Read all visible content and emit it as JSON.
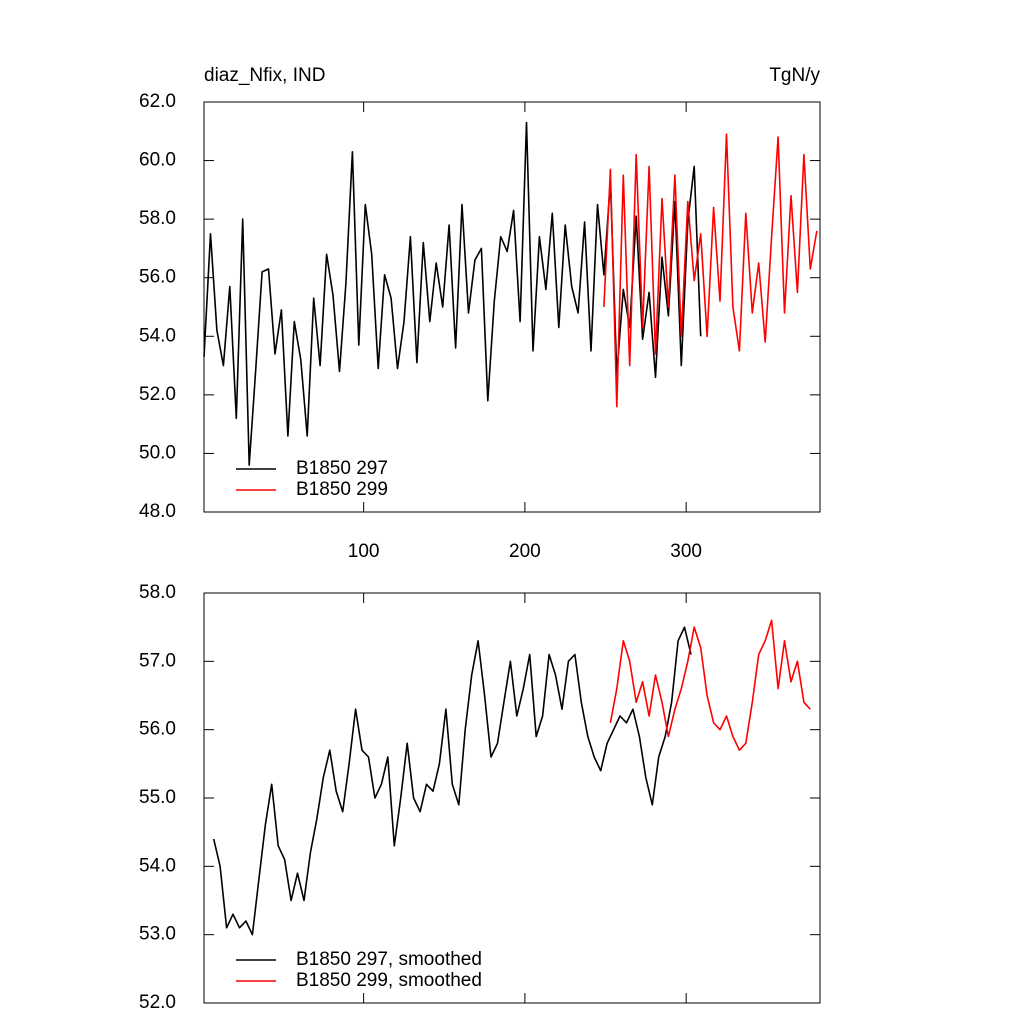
{
  "chart_data": [
    {
      "type": "line",
      "title": "diaz_Nfix, IND",
      "right_title": "TgN/y",
      "xlim": [
        1,
        383
      ],
      "xticks": [
        100,
        200,
        300
      ],
      "show_xtick_labels": true,
      "ylim": [
        48,
        62
      ],
      "yticks": [
        {
          "value": 48,
          "label": "48.0"
        },
        {
          "value": 50,
          "label": "50.0"
        },
        {
          "value": 52,
          "label": "52.0"
        },
        {
          "value": 54,
          "label": "54.0"
        },
        {
          "value": 56,
          "label": "56.0"
        },
        {
          "value": 58,
          "label": "58.0"
        },
        {
          "value": 60,
          "label": "60.0"
        },
        {
          "value": 62,
          "label": "62.0"
        }
      ],
      "legend": "lower left",
      "series": [
        {
          "name": "B1850 297",
          "color": "#000000",
          "x": [
            1,
            5,
            9,
            13,
            17,
            21,
            25,
            29,
            33,
            37,
            41,
            45,
            49,
            53,
            57,
            61,
            65,
            69,
            73,
            77,
            81,
            85,
            89,
            93,
            97,
            101,
            105,
            109,
            113,
            117,
            121,
            125,
            129,
            133,
            137,
            141,
            145,
            149,
            153,
            157,
            161,
            165,
            169,
            173,
            177,
            181,
            185,
            189,
            193,
            197,
            201,
            205,
            209,
            213,
            217,
            221,
            225,
            229,
            233,
            237,
            241,
            245,
            249,
            253,
            257,
            261,
            265,
            269,
            273,
            277,
            281,
            285,
            289,
            293,
            297,
            301,
            305,
            309
          ],
          "values": [
            53.3,
            57.5,
            54.2,
            53.0,
            55.7,
            51.2,
            58.0,
            49.6,
            52.8,
            56.2,
            56.3,
            53.4,
            54.9,
            50.6,
            54.5,
            53.2,
            50.6,
            55.3,
            53.0,
            56.8,
            55.4,
            52.8,
            55.8,
            60.3,
            53.7,
            58.5,
            56.8,
            52.9,
            56.1,
            55.3,
            52.9,
            54.5,
            57.4,
            53.1,
            57.2,
            54.5,
            56.5,
            55.0,
            57.8,
            53.6,
            58.5,
            54.8,
            56.6,
            57.0,
            51.8,
            55.2,
            57.4,
            56.9,
            58.3,
            54.5,
            61.3,
            53.5,
            57.4,
            55.6,
            58.2,
            54.3,
            57.8,
            55.7,
            54.8,
            57.9,
            53.5,
            58.5,
            56.1,
            59.3,
            52.7,
            55.6,
            54.3,
            58.1,
            53.9,
            55.5,
            52.6,
            56.7,
            54.7,
            58.6,
            53.0,
            57.9,
            59.8,
            54.0
          ]
        },
        {
          "name": "B1850 299",
          "color": "#ff0000",
          "x": [
            249,
            253,
            257,
            261,
            265,
            269,
            273,
            277,
            281,
            285,
            289,
            293,
            297,
            301,
            305,
            309,
            313,
            317,
            321,
            325,
            329,
            333,
            337,
            341,
            345,
            349,
            353,
            357,
            361,
            365,
            369,
            373,
            377,
            381
          ],
          "values": [
            55.0,
            59.7,
            51.6,
            59.5,
            53.0,
            60.2,
            54.3,
            59.8,
            53.4,
            58.7,
            55.0,
            59.5,
            54.0,
            58.6,
            55.9,
            57.5,
            54.0,
            58.4,
            55.2,
            60.9,
            55.0,
            53.5,
            58.2,
            54.8,
            56.5,
            53.8,
            57.4,
            60.8,
            54.8,
            58.8,
            55.5,
            60.2,
            56.3,
            57.6
          ]
        }
      ]
    },
    {
      "type": "line",
      "xlim": [
        1,
        383
      ],
      "xticks": [
        100,
        200,
        300
      ],
      "show_xtick_labels": false,
      "ylim": [
        52,
        58
      ],
      "yticks": [
        {
          "value": 52,
          "label": "52.0"
        },
        {
          "value": 53,
          "label": "53.0"
        },
        {
          "value": 54,
          "label": "54.0"
        },
        {
          "value": 55,
          "label": "55.0"
        },
        {
          "value": 56,
          "label": "56.0"
        },
        {
          "value": 57,
          "label": "57.0"
        },
        {
          "value": 58,
          "label": "58.0"
        }
      ],
      "legend": "lower left",
      "series": [
        {
          "name": "B1850 297, smoothed",
          "color": "#000000",
          "x": [
            7,
            11,
            15,
            19,
            23,
            27,
            31,
            35,
            39,
            43,
            47,
            51,
            55,
            59,
            63,
            67,
            71,
            75,
            79,
            83,
            87,
            91,
            95,
            99,
            103,
            107,
            111,
            115,
            119,
            123,
            127,
            131,
            135,
            139,
            143,
            147,
            151,
            155,
            159,
            163,
            167,
            171,
            175,
            179,
            183,
            187,
            191,
            195,
            199,
            203,
            207,
            211,
            215,
            219,
            223,
            227,
            231,
            235,
            239,
            243,
            247,
            251,
            255,
            259,
            263,
            267,
            271,
            275,
            279,
            283,
            287,
            291,
            295,
            299,
            303
          ],
          "values": [
            54.4,
            54.0,
            53.1,
            53.3,
            53.1,
            53.2,
            53.0,
            53.8,
            54.6,
            55.2,
            54.3,
            54.1,
            53.5,
            53.9,
            53.5,
            54.2,
            54.7,
            55.3,
            55.7,
            55.1,
            54.8,
            55.5,
            56.3,
            55.7,
            55.6,
            55.0,
            55.2,
            55.6,
            54.3,
            55.0,
            55.8,
            55.0,
            54.8,
            55.2,
            55.1,
            55.5,
            56.3,
            55.2,
            54.9,
            56.0,
            56.8,
            57.3,
            56.5,
            55.6,
            55.8,
            56.4,
            57.0,
            56.2,
            56.6,
            57.1,
            55.9,
            56.2,
            57.1,
            56.8,
            56.3,
            57.0,
            57.1,
            56.4,
            55.9,
            55.6,
            55.4,
            55.8,
            56.0,
            56.2,
            56.1,
            56.3,
            55.9,
            55.3,
            54.9,
            55.6,
            55.9,
            56.4,
            57.3,
            57.5,
            57.1
          ]
        },
        {
          "name": "B1850 299, smoothed",
          "color": "#ff0000",
          "x": [
            253,
            257,
            261,
            265,
            269,
            273,
            277,
            281,
            285,
            289,
            293,
            297,
            301,
            305,
            309,
            313,
            317,
            321,
            325,
            329,
            333,
            337,
            341,
            345,
            349,
            353,
            357,
            361,
            365,
            369,
            373,
            377
          ],
          "values": [
            56.1,
            56.6,
            57.3,
            57.0,
            56.4,
            56.7,
            56.2,
            56.8,
            56.4,
            55.9,
            56.3,
            56.6,
            57.0,
            57.5,
            57.2,
            56.5,
            56.1,
            56.0,
            56.2,
            55.9,
            55.7,
            55.8,
            56.4,
            57.1,
            57.3,
            57.6,
            56.6,
            57.3,
            56.7,
            57.0,
            56.4,
            56.3
          ]
        }
      ]
    }
  ]
}
